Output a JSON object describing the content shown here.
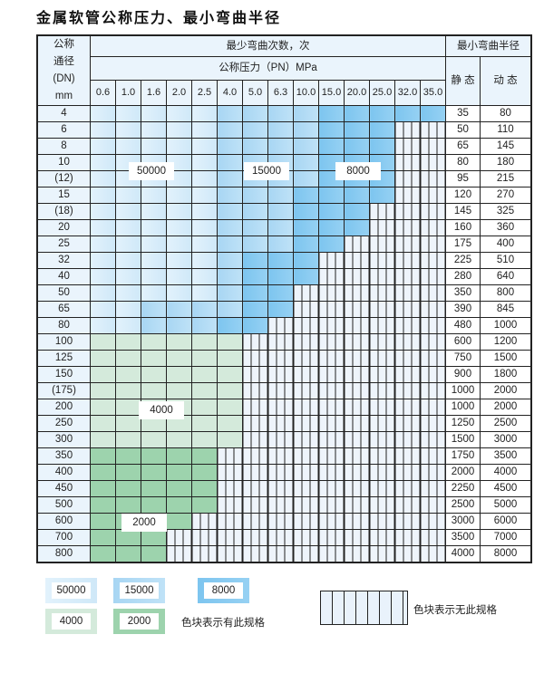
{
  "title": "金属软管公称压力、最小弯曲半径",
  "header": {
    "dn_label": [
      "公称",
      "通径",
      "(DN)",
      "mm"
    ],
    "bend_count": "最少弯曲次数，次",
    "pressure": "公称压力（PN）MPa",
    "radius": "最小弯曲半径",
    "static": "静 态",
    "dynamic": "动 态",
    "pressures": [
      "0.6",
      "1.0",
      "1.6",
      "2.0",
      "2.5",
      "4.0",
      "5.0",
      "6.3",
      "10.0",
      "15.0",
      "20.0",
      "25.0",
      "32.0",
      "35.0"
    ]
  },
  "legend_codes": {
    "a": "50000",
    "b": "15000",
    "c": "8000",
    "g": "4000",
    "h": "2000",
    "n": "none"
  },
  "colors": {
    "a": "#d6ecfa",
    "b": "#a9d8f3",
    "c": "#7cc6ee",
    "g": "#d3e9d6",
    "h": "#9dd0a8"
  },
  "rows": [
    {
      "dn": "4",
      "static": "35",
      "dynamic": "80",
      "cells": "aaaaabbbbccccc"
    },
    {
      "dn": "6",
      "static": "50",
      "dynamic": "110",
      "cells": "aaaaabbbbcccnn"
    },
    {
      "dn": "8",
      "static": "65",
      "dynamic": "145",
      "cells": "aaaaabbbbcccnn"
    },
    {
      "dn": "10",
      "static": "80",
      "dynamic": "180",
      "cells": "aaaaabbbbcccnn"
    },
    {
      "dn": "(12)",
      "static": "95",
      "dynamic": "215",
      "cells": "aaaaabbbbcccnn"
    },
    {
      "dn": "15",
      "static": "120",
      "dynamic": "270",
      "cells": "aaaaabbbccccnn"
    },
    {
      "dn": "(18)",
      "static": "145",
      "dynamic": "325",
      "cells": "aaaaabbbcccnnn"
    },
    {
      "dn": "20",
      "static": "160",
      "dynamic": "360",
      "cells": "aaaaabbbcccnnn"
    },
    {
      "dn": "25",
      "static": "175",
      "dynamic": "400",
      "cells": "aaaaabbbccnnnn"
    },
    {
      "dn": "32",
      "static": "225",
      "dynamic": "510",
      "cells": "aaaaabcccnnnnn"
    },
    {
      "dn": "40",
      "static": "280",
      "dynamic": "640",
      "cells": "aaaaabcccnnnnn"
    },
    {
      "dn": "50",
      "static": "350",
      "dynamic": "800",
      "cells": "aaaaabccnnnnnn"
    },
    {
      "dn": "65",
      "static": "390",
      "dynamic": "845",
      "cells": "aabbbbccnnnnnn"
    },
    {
      "dn": "80",
      "static": "480",
      "dynamic": "1000",
      "cells": "aabbbccnnnnnnn"
    },
    {
      "dn": "100",
      "static": "600",
      "dynamic": "1200",
      "cells": "ggggggnnnnnnnn"
    },
    {
      "dn": "125",
      "static": "750",
      "dynamic": "1500",
      "cells": "ggggggnnnnnnnn"
    },
    {
      "dn": "150",
      "static": "900",
      "dynamic": "1800",
      "cells": "ggggggnnnnnnnn"
    },
    {
      "dn": "(175)",
      "static": "1000",
      "dynamic": "2000",
      "cells": "ggggggnnnnnnnn"
    },
    {
      "dn": "200",
      "static": "1000",
      "dynamic": "2000",
      "cells": "ggggggnnnnnnnn"
    },
    {
      "dn": "250",
      "static": "1250",
      "dynamic": "2500",
      "cells": "ggggggnnnnnnnn"
    },
    {
      "dn": "300",
      "static": "1500",
      "dynamic": "3000",
      "cells": "ggggggnnnnnnnn"
    },
    {
      "dn": "350",
      "static": "1750",
      "dynamic": "3500",
      "cells": "hhhhhnnnnnnnnn"
    },
    {
      "dn": "400",
      "static": "2000",
      "dynamic": "4000",
      "cells": "hhhhhnnnnnnnnn"
    },
    {
      "dn": "450",
      "static": "2250",
      "dynamic": "4500",
      "cells": "hhhhhnnnnnnnnn"
    },
    {
      "dn": "500",
      "static": "2500",
      "dynamic": "5000",
      "cells": "hhhhhnnnnnnnnn"
    },
    {
      "dn": "600",
      "static": "3000",
      "dynamic": "6000",
      "cells": "hhhhnnnnnnnnnn"
    },
    {
      "dn": "700",
      "static": "3500",
      "dynamic": "7000",
      "cells": "hhhnnnnnnnnnnn"
    },
    {
      "dn": "800",
      "static": "4000",
      "dynamic": "8000",
      "cells": "hhhnnnnnnnnnnn"
    }
  ],
  "region_labels": {
    "a": "50000",
    "b": "15000",
    "c": "8000",
    "g": "4000",
    "h": "2000"
  },
  "legend": {
    "items": [
      "50000",
      "15000",
      "8000",
      "4000",
      "2000"
    ],
    "has_spec": "色块表示有此规格",
    "no_spec": "色块表示无此规格"
  }
}
